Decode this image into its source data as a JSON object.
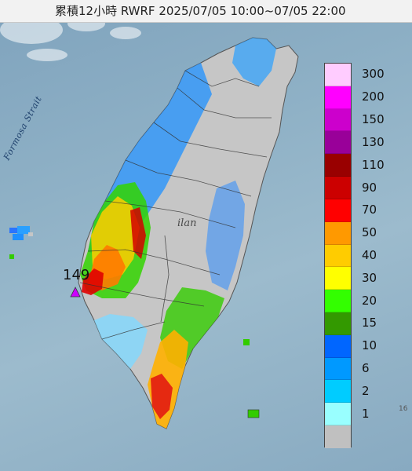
{
  "title": "累積12小時 RWRF 2025/07/05 10:00~07/05 22:00",
  "labels": {
    "strait": "Formosa Strait",
    "yilan": "ilan",
    "max_value": "149",
    "far_label": "16"
  },
  "legend": [
    {
      "label": "300",
      "color": "#ffccff"
    },
    {
      "label": "200",
      "color": "#ff00ff"
    },
    {
      "label": "150",
      "color": "#cc00cc"
    },
    {
      "label": "130",
      "color": "#990099"
    },
    {
      "label": "110",
      "color": "#990000"
    },
    {
      "label": "90",
      "color": "#cc0000"
    },
    {
      "label": "70",
      "color": "#ff0000"
    },
    {
      "label": "50",
      "color": "#ff9900"
    },
    {
      "label": "40",
      "color": "#ffcc00"
    },
    {
      "label": "30",
      "color": "#ffff00"
    },
    {
      "label": "20",
      "color": "#33ff00"
    },
    {
      "label": "15",
      "color": "#339900"
    },
    {
      "label": "10",
      "color": "#0066ff"
    },
    {
      "label": "6",
      "color": "#0099ff"
    },
    {
      "label": "2",
      "color": "#00ccff"
    },
    {
      "label": "1",
      "color": "#99ffff"
    },
    {
      "label": "",
      "color": "#c0c0c0"
    }
  ]
}
